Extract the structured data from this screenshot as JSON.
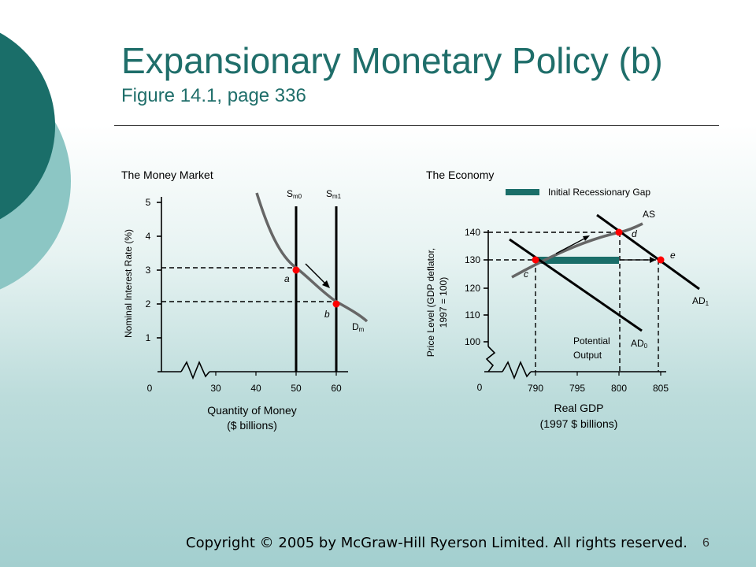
{
  "slide": {
    "title": "Expansionary Monetary Policy (b)",
    "subtitle": "Figure 14.1, page 336",
    "footer": "Copyright © 2005 by McGraw-Hill Ryerson Limited. All rights reserved.",
    "page_number": "6",
    "colors": {
      "accent_dark": "#1a6e69",
      "accent_light": "#8cc6c4",
      "gap_bar": "#1a6e69",
      "point": "#ff0000"
    }
  },
  "chart_data": [
    {
      "type": "line",
      "title": "The Money Market",
      "xlabel": "Quantity of Money",
      "xlabel2": "($ billions)",
      "ylabel": "Nominal Interest Rate (%)",
      "x_ticks": [
        "0",
        "30",
        "40",
        "50",
        "60"
      ],
      "y_ticks": [
        "1",
        "2",
        "3",
        "4",
        "5"
      ],
      "series": [
        {
          "name": "Dm",
          "values": [
            [
              39,
              5.3
            ],
            [
              43,
              4.5
            ],
            [
              48,
              3.5
            ],
            [
              50,
              3
            ],
            [
              55,
              2.4
            ],
            [
              60,
              2
            ],
            [
              64,
              1.5
            ]
          ]
        },
        {
          "name": "Sm0",
          "values": [
            [
              50,
              0
            ],
            [
              50,
              5.2
            ]
          ]
        },
        {
          "name": "Sm1",
          "values": [
            [
              60,
              0
            ],
            [
              60,
              5.2
            ]
          ]
        }
      ],
      "labels": {
        "sm0_main": "S",
        "sm0_sub": "m0",
        "sm1_main": "S",
        "sm1_sub": "m1",
        "dm_main": "D",
        "dm_sub": "m"
      },
      "points": [
        {
          "label": "a",
          "x": 50,
          "y": 3
        },
        {
          "label": "b",
          "x": 60,
          "y": 2
        }
      ]
    },
    {
      "type": "line",
      "title": "The Economy",
      "xlabel": "Real GDP",
      "xlabel2": "(1997 $ billions)",
      "ylabel": "Price Level (GDP deflator,",
      "ylabel2": "1997 = 100)",
      "x_ticks": [
        "790",
        "795",
        "800",
        "805"
      ],
      "y_ticks": [
        "100",
        "110",
        "120",
        "130",
        "140"
      ],
      "origin_label": "0",
      "legend": "Initial Recessionary Gap",
      "series": [
        {
          "name": "AS",
          "values": [
            [
              789,
              128
            ],
            [
              791,
              130
            ],
            [
              795,
              134
            ],
            [
              800,
              140
            ],
            [
              803,
              142
            ]
          ]
        },
        {
          "name": "AD0",
          "values": [
            [
              786,
              133
            ],
            [
              790,
              130
            ],
            [
              800,
              120
            ],
            [
              803,
              116
            ]
          ]
        },
        {
          "name": "AD1",
          "values": [
            [
              797,
              146
            ],
            [
              800,
              143
            ],
            [
              805,
              130
            ],
            [
              810,
              117
            ]
          ]
        }
      ],
      "labels": {
        "as": "AS",
        "ad0_main": "AD",
        "ad0_sub": "0",
        "ad1_main": "AD",
        "ad1_sub": "1",
        "potential": "Potential",
        "potential2": "Output"
      },
      "points": [
        {
          "label": "c",
          "x": 790,
          "y": 130
        },
        {
          "label": "d",
          "x": 800,
          "y": 140
        },
        {
          "label": "e",
          "x": 805,
          "y": 130
        }
      ],
      "recessionary_gap": [
        790,
        800
      ],
      "potential_output": 800
    }
  ]
}
